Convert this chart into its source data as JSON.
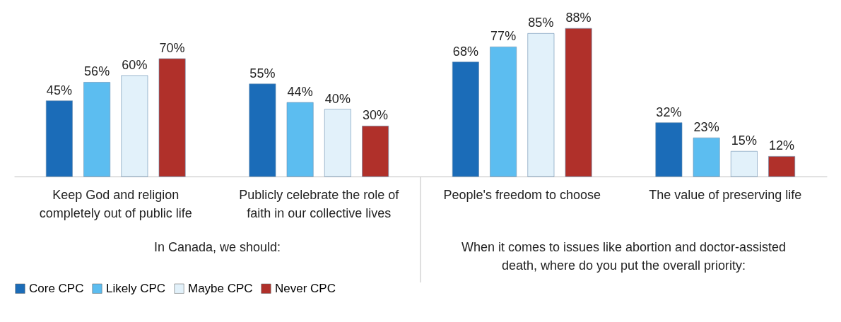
{
  "chart_data": {
    "type": "bar",
    "categories": [
      "Keep God and religion completely out of public life",
      "Publicly celebrate the role of faith in our collective lives",
      "People's freedom to choose",
      "The value of preserving life"
    ],
    "series": [
      {
        "name": "Core CPC",
        "color": "#1b6cb8",
        "values": [
          45,
          55,
          68,
          32
        ],
        "value_labels": [
          "45%",
          "55%",
          "68%",
          "32%"
        ]
      },
      {
        "name": "Likely CPC",
        "color": "#5cbdf0",
        "values": [
          56,
          44,
          77,
          23
        ],
        "value_labels": [
          "56%",
          "44%",
          "77%",
          "23%"
        ]
      },
      {
        "name": "Maybe CPC",
        "color": "#e2f1fa",
        "values": [
          60,
          40,
          85,
          15
        ],
        "value_labels": [
          "60%",
          "40%",
          "85%",
          "15%"
        ]
      },
      {
        "name": "Never CPC",
        "color": "#b0302a",
        "values": [
          70,
          30,
          88,
          12
        ],
        "value_labels": [
          "70%",
          "30%",
          "88%",
          "12%"
        ]
      }
    ],
    "legend": "bottom",
    "annotations": [
      "In Canada, we should:",
      "When it comes to issues like abortion and doctor-assisted death, where do you put the overall priority:"
    ]
  }
}
